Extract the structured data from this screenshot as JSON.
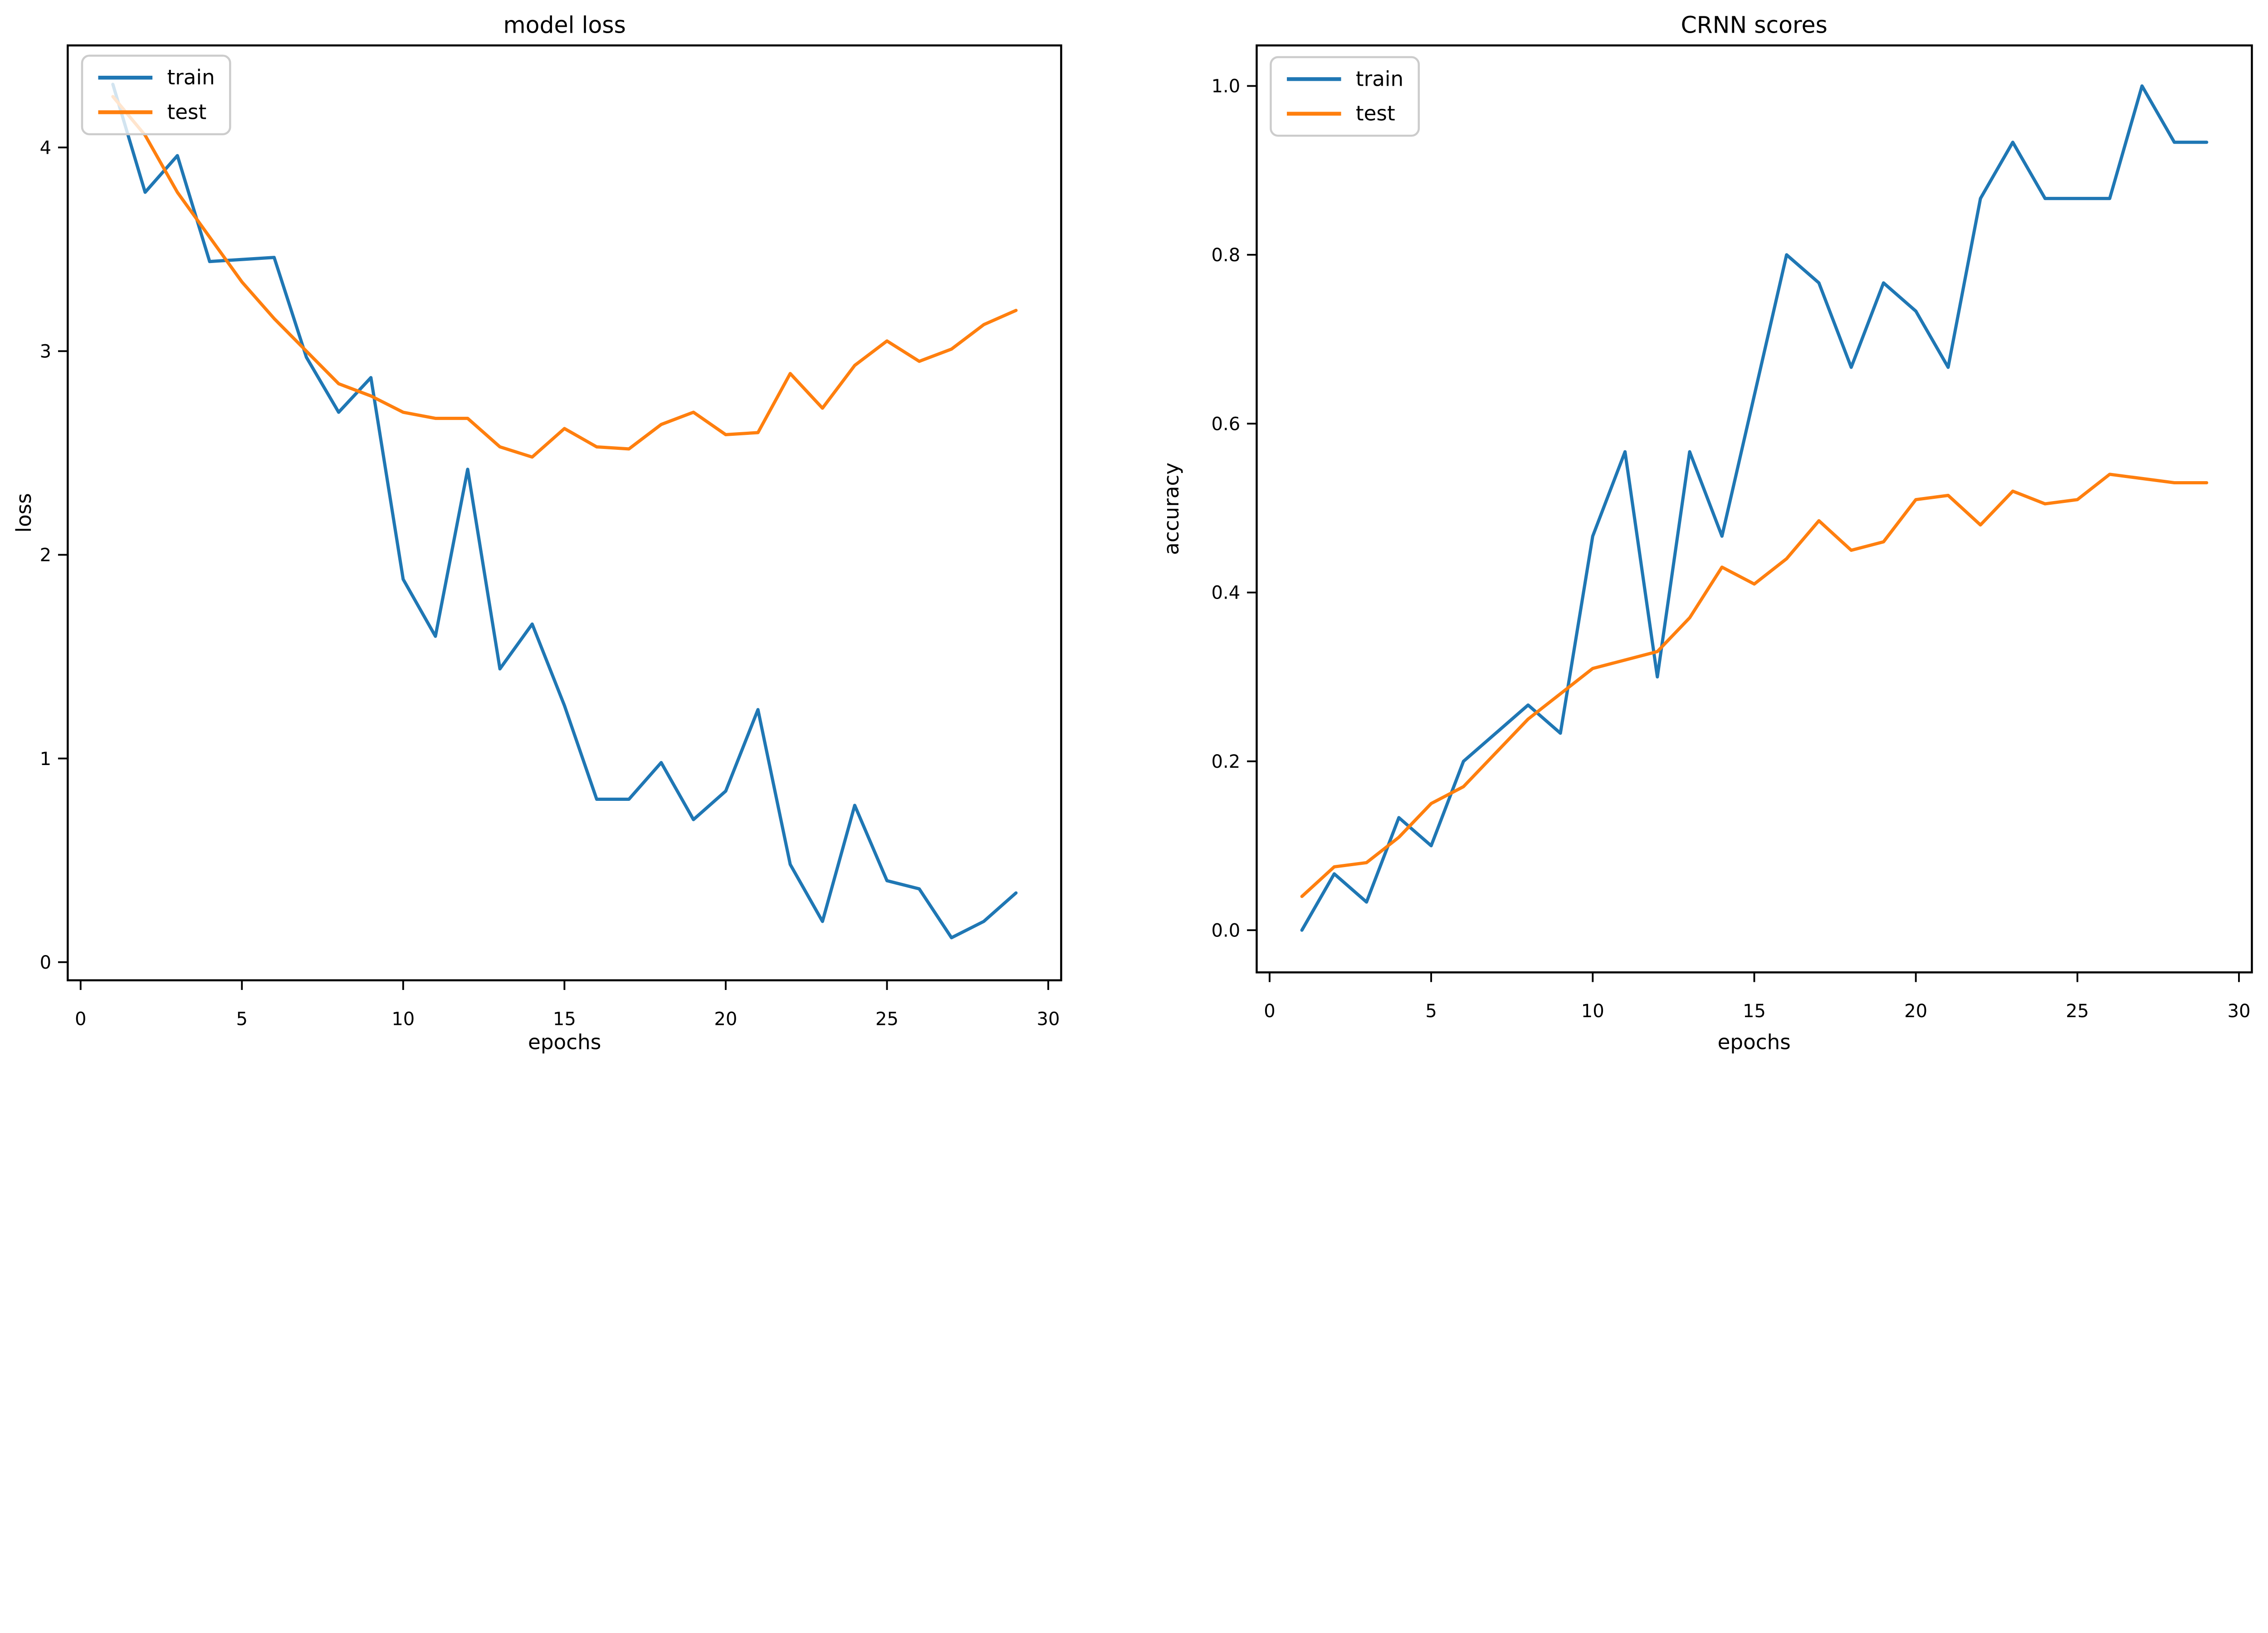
{
  "figure": {
    "background": "#ffffff",
    "text_color": "#000000",
    "spine_color": "#000000",
    "legend_border_color": "#cccccc"
  },
  "colors": {
    "train": "#1f77b4",
    "test": "#ff7f0e"
  },
  "chart_data": [
    {
      "type": "line",
      "title": "model loss",
      "xlabel": "epochs",
      "ylabel": "loss",
      "legend_position": "upper left",
      "grid": false,
      "xlim": [
        -0.4,
        30.4
      ],
      "ylim": [
        -0.089,
        4.501
      ],
      "xticks": [
        0,
        5,
        10,
        15,
        20,
        25,
        30
      ],
      "xtick_labels": [
        "0",
        "5",
        "10",
        "15",
        "20",
        "25",
        "30"
      ],
      "yticks": [
        0,
        1,
        2,
        3,
        4
      ],
      "ytick_labels": [
        "0",
        "1",
        "2",
        "3",
        "4"
      ],
      "x": [
        1,
        2,
        3,
        4,
        5,
        6,
        7,
        8,
        9,
        10,
        11,
        12,
        13,
        14,
        15,
        16,
        17,
        18,
        19,
        20,
        21,
        22,
        23,
        24,
        25,
        26,
        27,
        28,
        29
      ],
      "series": [
        {
          "name": "train",
          "values": [
            4.31,
            3.78,
            3.96,
            3.44,
            3.45,
            3.46,
            2.97,
            2.7,
            2.87,
            1.88,
            1.6,
            2.42,
            1.44,
            1.66,
            1.26,
            0.8,
            0.8,
            0.98,
            0.7,
            0.84,
            1.24,
            0.48,
            0.2,
            0.77,
            0.4,
            0.36,
            0.12,
            0.2,
            0.34
          ]
        },
        {
          "name": "test",
          "values": [
            4.25,
            4.06,
            3.78,
            3.56,
            3.34,
            3.16,
            3.0,
            2.84,
            2.78,
            2.7,
            2.67,
            2.67,
            2.53,
            2.48,
            2.62,
            2.53,
            2.52,
            2.64,
            2.7,
            2.59,
            2.6,
            2.89,
            2.72,
            2.93,
            3.05,
            2.95,
            3.01,
            3.13,
            3.2
          ]
        }
      ]
    },
    {
      "type": "line",
      "title": "CRNN scores",
      "xlabel": "epochs",
      "ylabel": "accuracy",
      "legend_position": "upper left",
      "grid": false,
      "xlim": [
        -0.4,
        30.4
      ],
      "ylim": [
        -0.05,
        1.048
      ],
      "xticks": [
        0,
        5,
        10,
        15,
        20,
        25,
        30
      ],
      "xtick_labels": [
        "0",
        "5",
        "10",
        "15",
        "20",
        "25",
        "30"
      ],
      "yticks": [
        0.0,
        0.2,
        0.4,
        0.6,
        0.8,
        1.0
      ],
      "ytick_labels": [
        "0.0",
        "0.2",
        "0.4",
        "0.6",
        "0.8",
        "1.0"
      ],
      "x": [
        1,
        2,
        3,
        4,
        5,
        6,
        7,
        8,
        9,
        10,
        11,
        12,
        13,
        14,
        15,
        16,
        17,
        18,
        19,
        20,
        21,
        22,
        23,
        24,
        25,
        26,
        27,
        28,
        29
      ],
      "series": [
        {
          "name": "train",
          "values": [
            0.0,
            0.0667,
            0.0333,
            0.1333,
            0.1,
            0.2,
            0.2333,
            0.2667,
            0.2333,
            0.4667,
            0.5667,
            0.3,
            0.5667,
            0.4667,
            0.6333,
            0.8,
            0.7667,
            0.6667,
            0.7667,
            0.7333,
            0.6667,
            0.8667,
            0.9333,
            0.8667,
            0.8667,
            0.8667,
            1.0,
            0.9333,
            0.9333
          ]
        },
        {
          "name": "test",
          "values": [
            0.04,
            0.075,
            0.08,
            0.11,
            0.15,
            0.17,
            0.21,
            0.25,
            0.28,
            0.31,
            0.32,
            0.33,
            0.37,
            0.43,
            0.41,
            0.44,
            0.485,
            0.45,
            0.46,
            0.51,
            0.515,
            0.48,
            0.52,
            0.505,
            0.51,
            0.54,
            0.535,
            0.53,
            0.53
          ]
        }
      ]
    }
  ]
}
